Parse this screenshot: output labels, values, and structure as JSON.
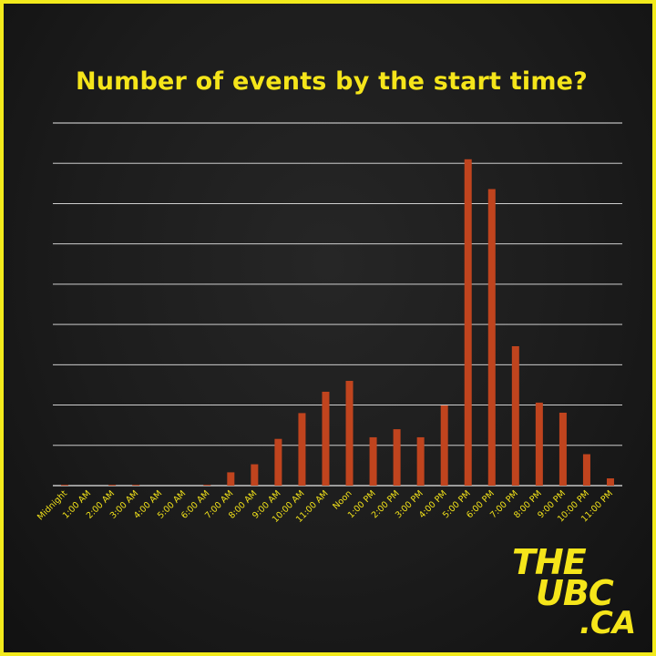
{
  "chart_data": {
    "type": "bar",
    "title": "Number of events by the start time?",
    "xlabel": "",
    "ylabel": "",
    "ylim": [
      0,
      90
    ],
    "gridlines": 9,
    "grid": true,
    "bar_color": "#c0441e",
    "grid_color": "#e8e8e8",
    "tick_label_color": "#f2e21a",
    "categories": [
      "Midnight",
      "1:00 AM",
      "2:00 AM",
      "3:00 AM",
      "4:00 AM",
      "5:00 AM",
      "6:00 AM",
      "7:00 AM",
      "8:00 AM",
      "9:00 AM",
      "10:00 AM",
      "11:00 AM",
      "Noon",
      "1:00 PM",
      "2:00 PM",
      "3:00 PM",
      "4:00 PM",
      "5:00 PM",
      "6:00 PM",
      "7:00 PM",
      "8:00 PM",
      "9:00 PM",
      "10:00 PM",
      "11:00 PM"
    ],
    "values": [
      0.2,
      0,
      0.2,
      0.2,
      0,
      0,
      0.2,
      3.3,
      5.3,
      11.6,
      18,
      23.3,
      26,
      12,
      14,
      12,
      19.9,
      81,
      73.6,
      34.6,
      20.6,
      18.1,
      7.8,
      1.8
    ]
  },
  "logo": {
    "line1": "THE",
    "line2": "UBC",
    "line3": ".CA"
  },
  "colors": {
    "border": "#f2ea1c",
    "title": "#f5e51a",
    "background": "#1c1c1c"
  }
}
